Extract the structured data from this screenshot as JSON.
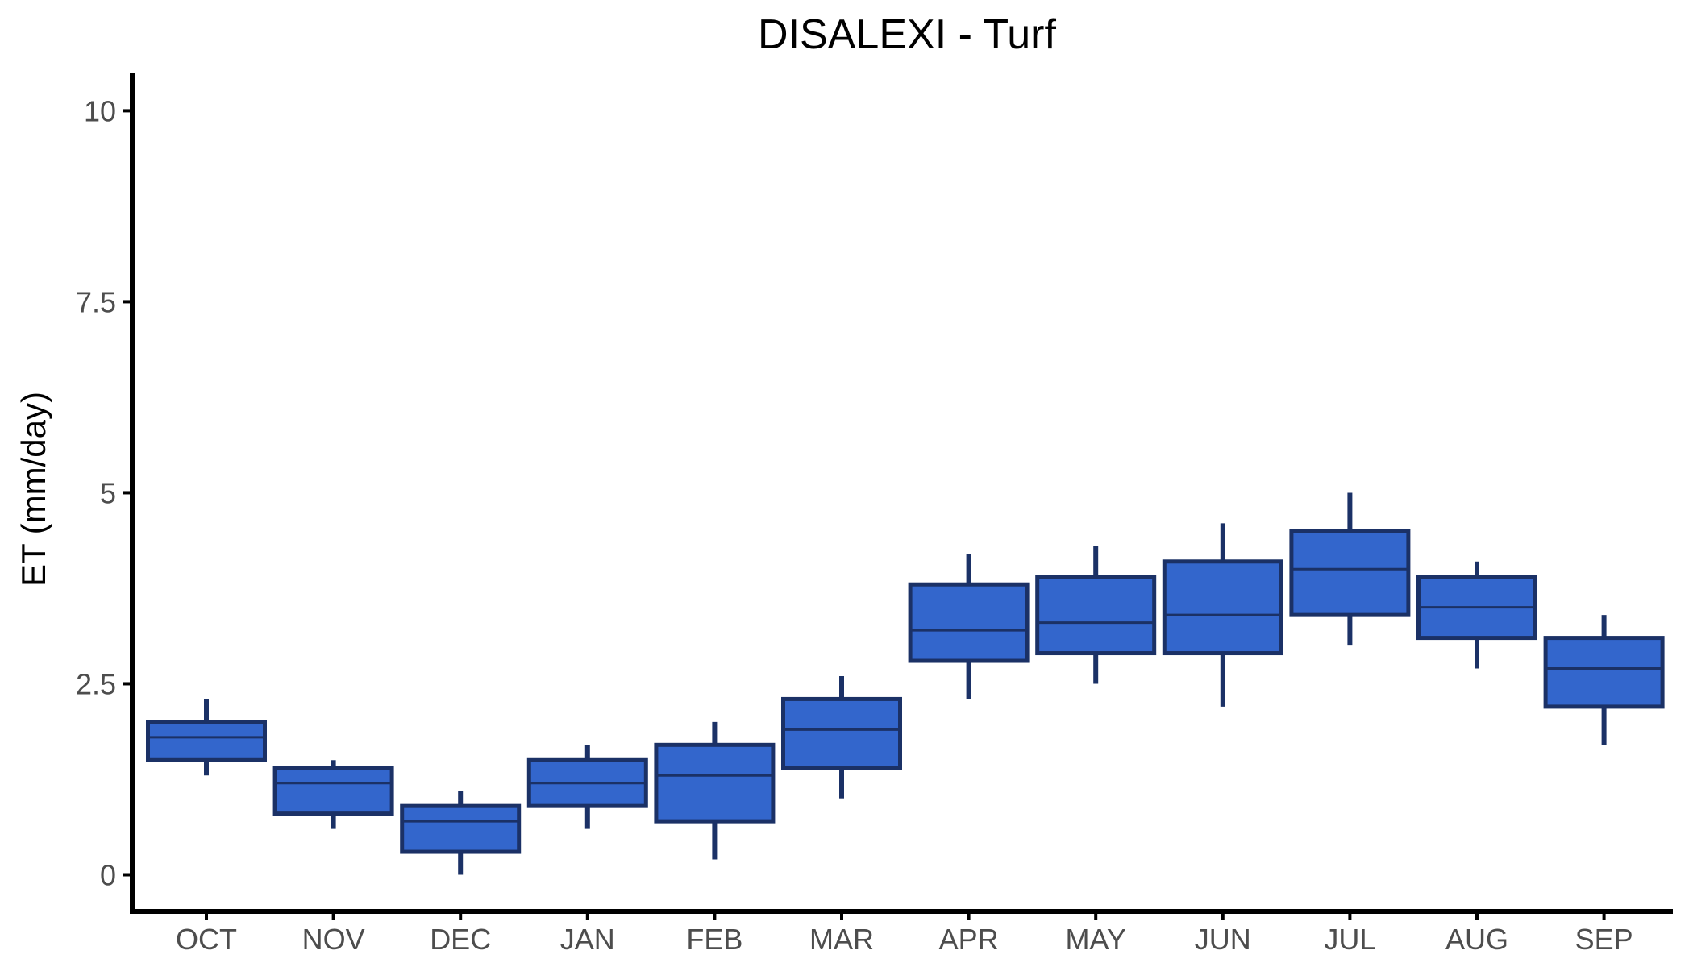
{
  "chart_data": {
    "type": "box",
    "title": "DISALEXI - Turf",
    "xlabel": "",
    "ylabel": "ET (mm/day)",
    "ylim": [
      -0.48,
      10.5
    ],
    "yticks": [
      0,
      2.5,
      5,
      7.5,
      10
    ],
    "ytick_labels": [
      "0",
      "2.5",
      "5",
      "7.5",
      "10"
    ],
    "grid": false,
    "legend": "none",
    "colors": {
      "fill": "#3366CC",
      "stroke": "#1B3166"
    },
    "categories": [
      "OCT",
      "NOV",
      "DEC",
      "JAN",
      "FEB",
      "MAR",
      "APR",
      "MAY",
      "JUN",
      "JUL",
      "AUG",
      "SEP"
    ],
    "boxes": [
      {
        "category": "OCT",
        "whisker_low": 1.3,
        "q1": 1.5,
        "median": 1.8,
        "q3": 2.0,
        "whisker_high": 2.3
      },
      {
        "category": "NOV",
        "whisker_low": 0.6,
        "q1": 0.8,
        "median": 1.2,
        "q3": 1.4,
        "whisker_high": 1.5
      },
      {
        "category": "DEC",
        "whisker_low": 0.0,
        "q1": 0.3,
        "median": 0.7,
        "q3": 0.9,
        "whisker_high": 1.1
      },
      {
        "category": "JAN",
        "whisker_low": 0.6,
        "q1": 0.9,
        "median": 1.2,
        "q3": 1.5,
        "whisker_high": 1.7
      },
      {
        "category": "FEB",
        "whisker_low": 0.2,
        "q1": 0.7,
        "median": 1.3,
        "q3": 1.7,
        "whisker_high": 2.0
      },
      {
        "category": "MAR",
        "whisker_low": 1.0,
        "q1": 1.4,
        "median": 1.9,
        "q3": 2.3,
        "whisker_high": 2.6
      },
      {
        "category": "APR",
        "whisker_low": 2.3,
        "q1": 2.8,
        "median": 3.2,
        "q3": 3.8,
        "whisker_high": 4.2
      },
      {
        "category": "MAY",
        "whisker_low": 2.5,
        "q1": 2.9,
        "median": 3.3,
        "q3": 3.9,
        "whisker_high": 4.3
      },
      {
        "category": "JUN",
        "whisker_low": 2.2,
        "q1": 2.9,
        "median": 3.4,
        "q3": 4.1,
        "whisker_high": 4.6
      },
      {
        "category": "JUL",
        "whisker_low": 3.0,
        "q1": 3.4,
        "median": 4.0,
        "q3": 4.5,
        "whisker_high": 5.0
      },
      {
        "category": "AUG",
        "whisker_low": 2.7,
        "q1": 3.1,
        "median": 3.5,
        "q3": 3.9,
        "whisker_high": 4.1
      },
      {
        "category": "SEP",
        "whisker_low": 1.7,
        "q1": 2.2,
        "median": 2.7,
        "q3": 3.1,
        "whisker_high": 3.4
      }
    ]
  }
}
